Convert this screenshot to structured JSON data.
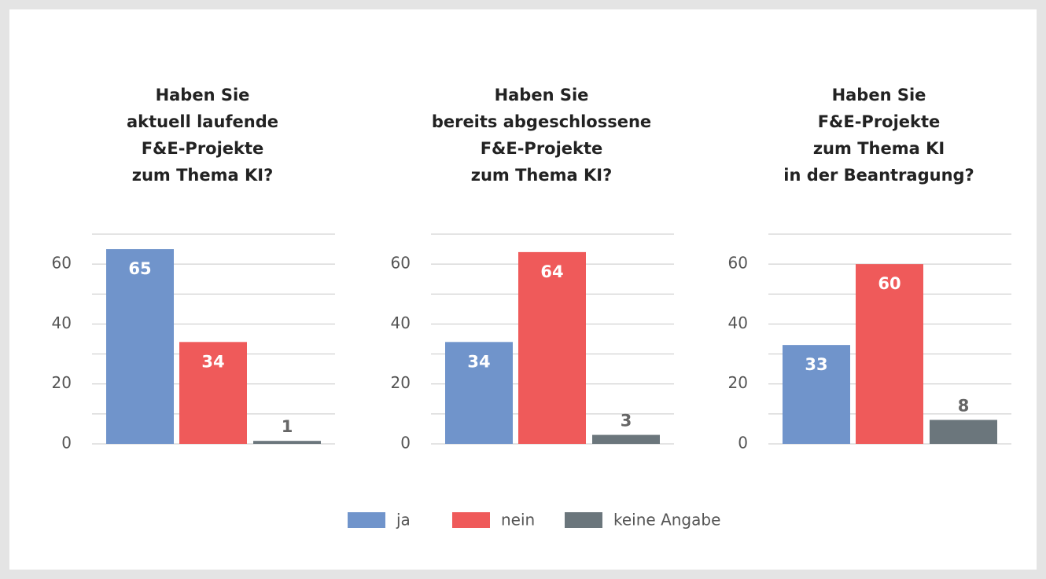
{
  "chart_data": [
    {
      "type": "bar",
      "title": [
        "Haben Sie",
        "aktuell laufende",
        "F&E-Projekte",
        "zum Thema KI?"
      ],
      "values": [
        65,
        34,
        1
      ],
      "ylim": [
        0,
        70
      ],
      "yticks": [
        0,
        20,
        40,
        60
      ],
      "minor_yticks": [
        10,
        30,
        50,
        70
      ],
      "grid": true
    },
    {
      "type": "bar",
      "title": [
        "Haben Sie",
        "bereits abgeschlossene",
        "F&E-Projekte",
        "zum Thema KI?"
      ],
      "values": [
        34,
        64,
        3
      ],
      "ylim": [
        0,
        70
      ],
      "yticks": [
        0,
        20,
        40,
        60
      ],
      "minor_yticks": [
        10,
        30,
        50,
        70
      ],
      "grid": true
    },
    {
      "type": "bar",
      "title": [
        "Haben Sie",
        "F&E-Projekte",
        "zum Thema KI",
        "in der Beantragung?"
      ],
      "values": [
        33,
        60,
        8
      ],
      "ylim": [
        0,
        70
      ],
      "yticks": [
        0,
        20,
        40,
        60
      ],
      "minor_yticks": [
        10,
        30,
        50,
        70
      ],
      "grid": true
    }
  ],
  "legend": [
    {
      "name": "ja",
      "color": "#7094cb"
    },
    {
      "name": "nein",
      "color": "#ef5a5a"
    },
    {
      "name": "keine Angabe",
      "color": "#6b767c"
    }
  ]
}
